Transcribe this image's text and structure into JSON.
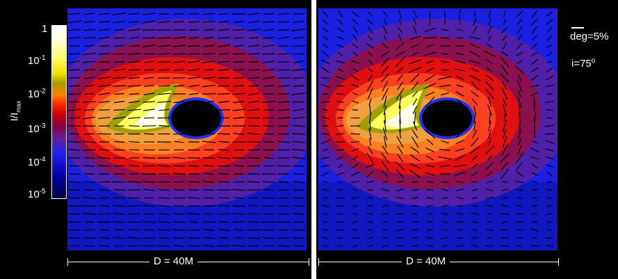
{
  "colorbar": {
    "label_main": "I/I",
    "label_sub": "max",
    "ticks": [
      {
        "base": "1",
        "exp": ""
      },
      {
        "base": "10",
        "exp": "-1"
      },
      {
        "base": "10",
        "exp": "-2"
      },
      {
        "base": "10",
        "exp": "-3"
      },
      {
        "base": "10",
        "exp": "-4"
      },
      {
        "base": "10",
        "exp": "-5"
      }
    ]
  },
  "panels": {
    "left": {
      "scale_label": "D = 40M"
    },
    "right": {
      "scale_label": "D = 40M"
    }
  },
  "legend": {
    "degree": "deg=5%",
    "inclination_base": "i=75",
    "inclination_exp": "o"
  },
  "colors": {
    "background": "#000000",
    "outer_blue": "#1a20e0",
    "purple": "#5020a8",
    "maroon": "#8a1050",
    "red": "#e01010",
    "orange": "#ff8020",
    "olive": "#a0a000",
    "yellow": "#ffff60",
    "core": "#ffffe8"
  }
}
